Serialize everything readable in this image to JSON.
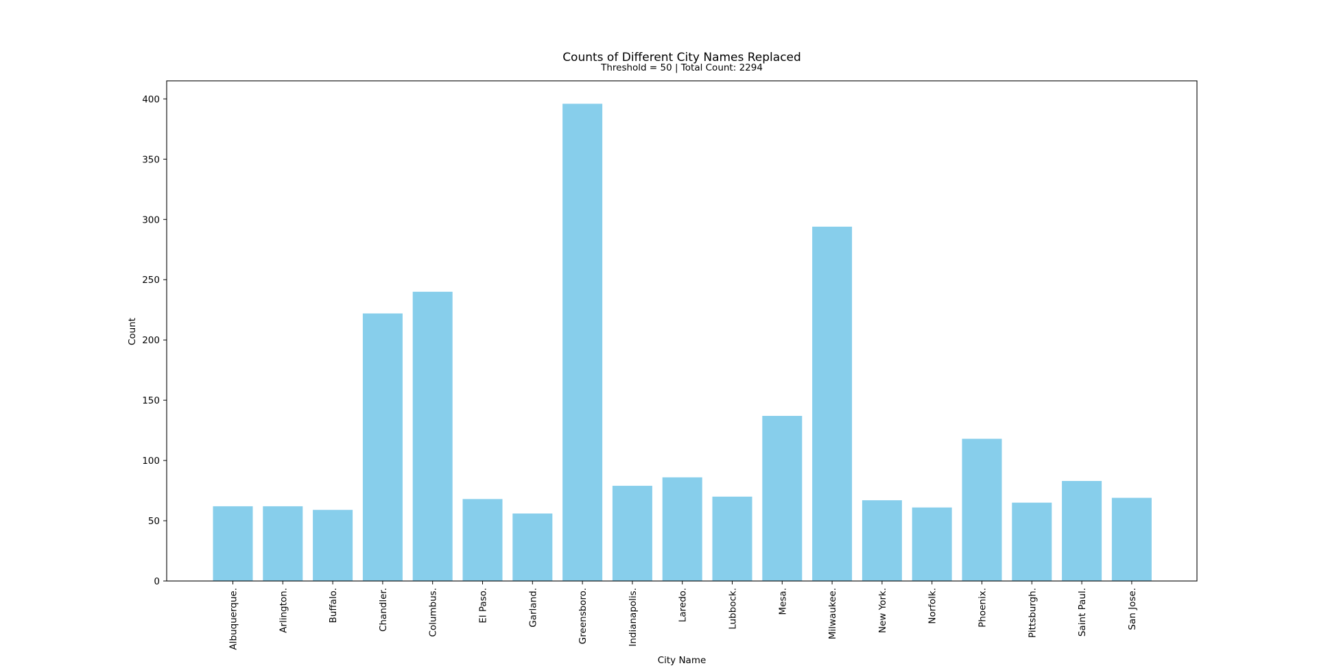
{
  "chart_data": {
    "type": "bar",
    "title": "Counts of Different City Names Replaced",
    "subtitle": "Threshold = 50 | Total Count: 2294",
    "xlabel": "City Name",
    "ylabel": "Count",
    "categories": [
      "Albuquerque.",
      "Arlington.",
      "Buffalo.",
      "Chandler.",
      "Columbus.",
      "El Paso.",
      "Garland.",
      "Greensboro.",
      "Indianapolis.",
      "Laredo.",
      "Lubbock.",
      "Mesa.",
      "Milwaukee.",
      "New York.",
      "Norfolk.",
      "Phoenix.",
      "Pittsburgh.",
      "Saint Paul.",
      "San Jose."
    ],
    "values": [
      62,
      62,
      59,
      222,
      240,
      68,
      56,
      396,
      79,
      86,
      70,
      137,
      294,
      67,
      61,
      118,
      65,
      83,
      69
    ],
    "ylim": [
      0,
      415
    ],
    "yticks": [
      0,
      50,
      100,
      150,
      200,
      250,
      300,
      350,
      400
    ],
    "bar_color": "#87CEEB",
    "grid": false,
    "legend": "none"
  }
}
